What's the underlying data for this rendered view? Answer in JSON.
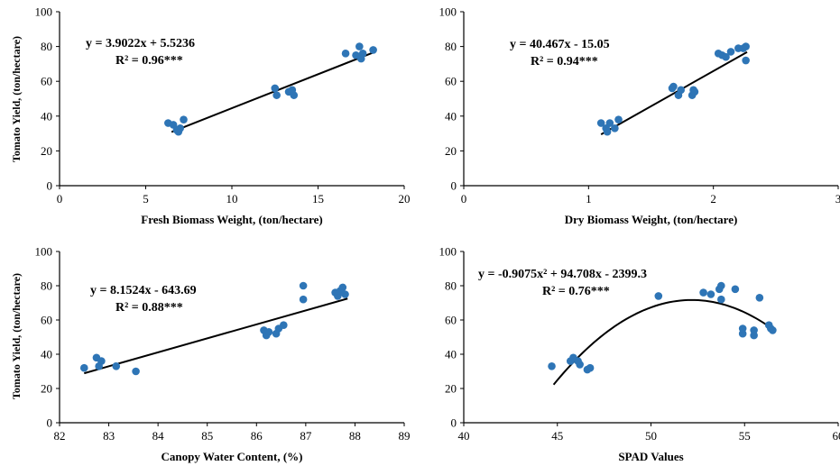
{
  "colors": {
    "point": "#2e75b6",
    "trend": "#000000",
    "axis": "#000000"
  },
  "chart_data": [
    {
      "type": "scatter",
      "xlabel": "Fresh Biomass Weight, (ton/hectare)",
      "ylabel": "Tomato Yield, (ton/hectare)",
      "xlim": [
        0,
        20
      ],
      "ylim": [
        0,
        100
      ],
      "xticks": [
        "0",
        "5",
        "10",
        "15",
        "20"
      ],
      "yticks": [
        "0",
        "20",
        "40",
        "60",
        "80",
        "100"
      ],
      "equation": "y = 3.9022x + 5.5236",
      "r2": "R² = 0.96***",
      "trend": {
        "kind": "linear",
        "a": 3.9022,
        "b": 5.5236,
        "x_range": [
          6.5,
          18.2
        ]
      },
      "points": [
        [
          6.3,
          36
        ],
        [
          6.6,
          35
        ],
        [
          6.9,
          31
        ],
        [
          7.0,
          33
        ],
        [
          7.2,
          38
        ],
        [
          6.8,
          32
        ],
        [
          12.5,
          56
        ],
        [
          12.6,
          52
        ],
        [
          13.3,
          54
        ],
        [
          13.5,
          55
        ],
        [
          13.6,
          52
        ],
        [
          16.6,
          76
        ],
        [
          17.2,
          75
        ],
        [
          17.4,
          80
        ],
        [
          17.5,
          73
        ],
        [
          17.6,
          76
        ],
        [
          18.2,
          78
        ]
      ]
    },
    {
      "type": "scatter",
      "xlabel": "Dry Biomass Weight, (ton/hectare)",
      "ylabel": "",
      "xlim": [
        0,
        3
      ],
      "ylim": [
        0,
        100
      ],
      "xticks": [
        "0",
        "1",
        "2",
        "3"
      ],
      "yticks": [
        "0",
        "20",
        "40",
        "60",
        "80",
        "100"
      ],
      "equation": "y = 40.467x - 15.05",
      "r2": "R² = 0.94***",
      "trend": {
        "kind": "linear",
        "a": 40.467,
        "b": -15.05,
        "x_range": [
          1.1,
          2.27
        ]
      },
      "points": [
        [
          1.1,
          36
        ],
        [
          1.14,
          33
        ],
        [
          1.15,
          31
        ],
        [
          1.17,
          36
        ],
        [
          1.21,
          33
        ],
        [
          1.24,
          38
        ],
        [
          1.67,
          56
        ],
        [
          1.68,
          57
        ],
        [
          1.72,
          52
        ],
        [
          1.74,
          55
        ],
        [
          1.83,
          52
        ],
        [
          1.84,
          55
        ],
        [
          1.85,
          54
        ],
        [
          2.04,
          76
        ],
        [
          2.07,
          75
        ],
        [
          2.1,
          74
        ],
        [
          2.14,
          77
        ],
        [
          2.2,
          79
        ],
        [
          2.24,
          79
        ],
        [
          2.26,
          80
        ],
        [
          2.26,
          72
        ]
      ]
    },
    {
      "type": "scatter",
      "xlabel": "Canopy Water Content, (%)",
      "ylabel": "Tomato Yield, (ton/hectare)",
      "xlim": [
        82,
        89
      ],
      "ylim": [
        0,
        100
      ],
      "xticks": [
        "82",
        "83",
        "84",
        "85",
        "86",
        "87",
        "88",
        "89"
      ],
      "yticks": [
        "0",
        "20",
        "40",
        "60",
        "80",
        "100"
      ],
      "equation": "y = 8.1524x - 643.69",
      "r2": "R² = 0.88***",
      "trend": {
        "kind": "linear",
        "a": 8.1524,
        "b": -643.69,
        "x_range": [
          82.5,
          87.85
        ]
      },
      "points": [
        [
          82.5,
          32
        ],
        [
          82.75,
          38
        ],
        [
          82.8,
          33
        ],
        [
          82.85,
          36
        ],
        [
          83.15,
          33
        ],
        [
          83.55,
          30
        ],
        [
          86.15,
          54
        ],
        [
          86.2,
          51
        ],
        [
          86.25,
          53
        ],
        [
          86.4,
          52
        ],
        [
          86.45,
          55
        ],
        [
          86.55,
          57
        ],
        [
          86.95,
          72
        ],
        [
          86.95,
          80
        ],
        [
          87.6,
          76
        ],
        [
          87.65,
          74
        ],
        [
          87.7,
          77
        ],
        [
          87.75,
          79
        ],
        [
          87.8,
          75
        ]
      ]
    },
    {
      "type": "scatter",
      "xlabel": "SPAD Values",
      "ylabel": "",
      "xlim": [
        40,
        60
      ],
      "ylim": [
        0,
        100
      ],
      "xticks": [
        "40",
        "45",
        "50",
        "55",
        "60"
      ],
      "yticks": [
        "0",
        "20",
        "40",
        "60",
        "80",
        "100"
      ],
      "equation": "y = -0.9075x² + 94.708x - 2399.3",
      "r2": "R² = 0.76***",
      "trend": {
        "kind": "quadratic",
        "a": -0.9075,
        "b": 94.708,
        "c": -2399.3,
        "x_range": [
          44.8,
          56.4
        ]
      },
      "points": [
        [
          44.7,
          33
        ],
        [
          45.7,
          36
        ],
        [
          45.85,
          38
        ],
        [
          46.1,
          36
        ],
        [
          46.2,
          34
        ],
        [
          46.6,
          31
        ],
        [
          46.75,
          32
        ],
        [
          50.4,
          74
        ],
        [
          52.8,
          76
        ],
        [
          53.2,
          75
        ],
        [
          53.65,
          78
        ],
        [
          53.75,
          80
        ],
        [
          53.75,
          72
        ],
        [
          54.5,
          78
        ],
        [
          54.9,
          52
        ],
        [
          54.9,
          55
        ],
        [
          55.5,
          51
        ],
        [
          55.5,
          54
        ],
        [
          55.8,
          73
        ],
        [
          56.3,
          57
        ],
        [
          56.4,
          55
        ],
        [
          56.5,
          54
        ]
      ]
    }
  ]
}
